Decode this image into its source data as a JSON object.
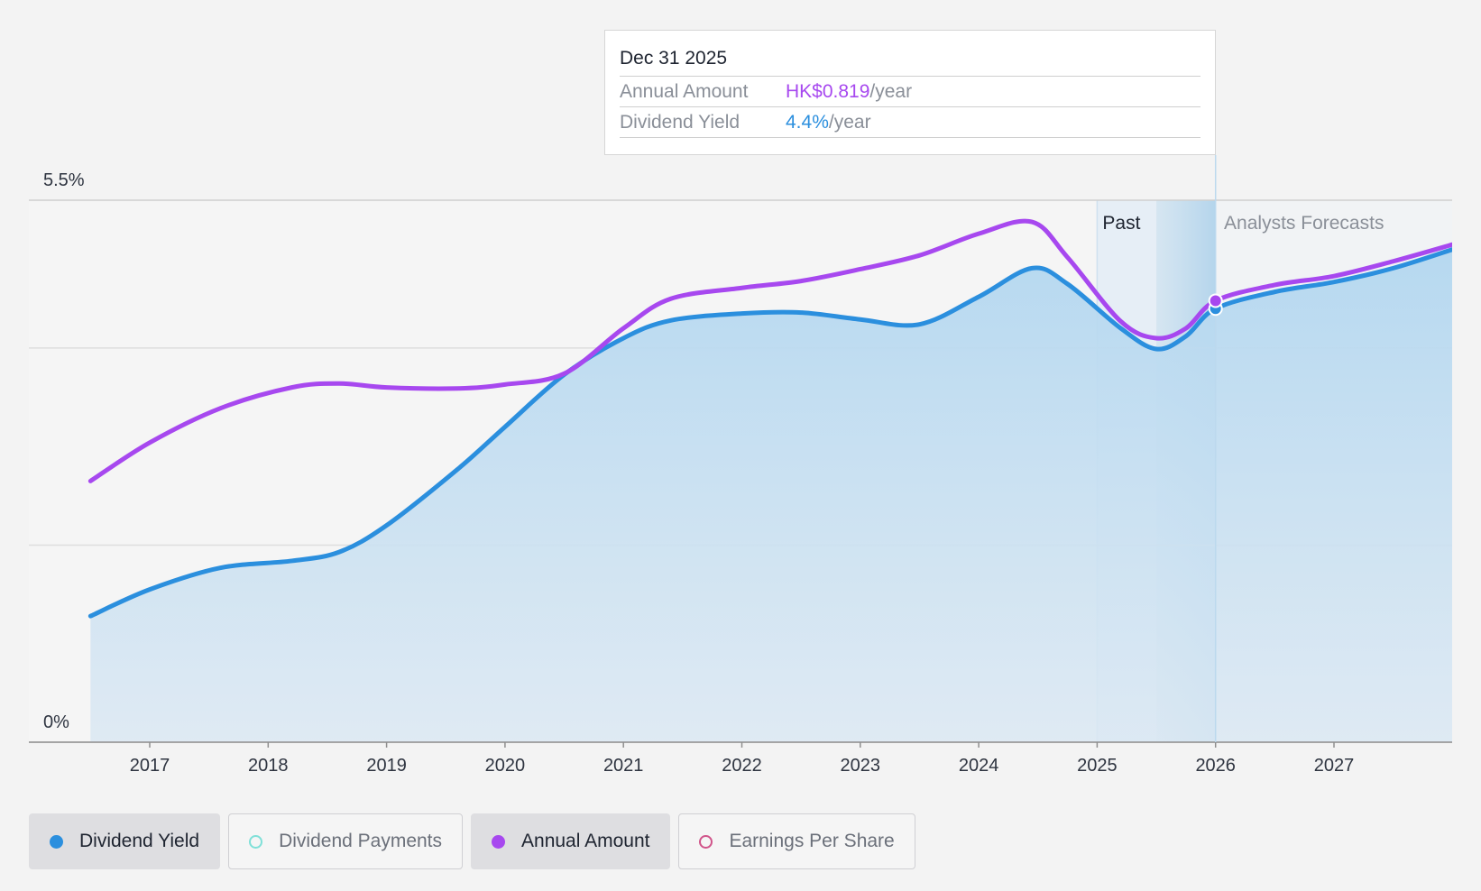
{
  "tooltip": {
    "date": "Dec 31 2025",
    "rows": [
      {
        "key": "Annual Amount",
        "value": "HK$0.819",
        "unit": "/year"
      },
      {
        "key": "Dividend Yield",
        "value": "4.4%",
        "unit": "/year"
      }
    ]
  },
  "periods": {
    "past": "Past",
    "forecast": "Analysts Forecasts"
  },
  "legend": [
    {
      "label": "Dividend Yield",
      "active": true,
      "color": "#2b8fde",
      "filled": true
    },
    {
      "label": "Dividend Payments",
      "active": false,
      "color": "#7fe0d8",
      "filled": false
    },
    {
      "label": "Annual Amount",
      "active": true,
      "color": "#a748ef",
      "filled": true
    },
    {
      "label": "Earnings Per Share",
      "active": false,
      "color": "#d0548a",
      "filled": false
    }
  ],
  "chart_data": {
    "type": "line",
    "ylim": [
      0,
      5.5
    ],
    "y_tick_labels": [
      "0%",
      "5.5%"
    ],
    "y_gridlines": [
      0,
      2,
      4,
      5.5
    ],
    "x_ticks": [
      "2017",
      "2018",
      "2019",
      "2020",
      "2021",
      "2022",
      "2023",
      "2024",
      "2025",
      "2026",
      "2027"
    ],
    "xlim": [
      2016.0,
      2028.0
    ],
    "series": [
      {
        "name": "Dividend Yield",
        "color": "#2b8fde",
        "area": true,
        "points": [
          [
            2016.5,
            1.28
          ],
          [
            2017.0,
            1.55
          ],
          [
            2017.6,
            1.77
          ],
          [
            2018.2,
            1.84
          ],
          [
            2018.6,
            1.93
          ],
          [
            2019.0,
            2.2
          ],
          [
            2019.6,
            2.77
          ],
          [
            2020.0,
            3.2
          ],
          [
            2020.5,
            3.73
          ],
          [
            2021.0,
            4.1
          ],
          [
            2021.4,
            4.28
          ],
          [
            2022.0,
            4.35
          ],
          [
            2022.5,
            4.36
          ],
          [
            2023.0,
            4.29
          ],
          [
            2023.5,
            4.24
          ],
          [
            2024.0,
            4.52
          ],
          [
            2024.45,
            4.81
          ],
          [
            2024.75,
            4.65
          ],
          [
            2025.2,
            4.2
          ],
          [
            2025.5,
            3.99
          ],
          [
            2025.75,
            4.12
          ],
          [
            2026.0,
            4.4
          ],
          [
            2026.5,
            4.57
          ],
          [
            2027.0,
            4.67
          ],
          [
            2027.5,
            4.81
          ],
          [
            2028.0,
            5.0
          ]
        ]
      },
      {
        "name": "Annual Amount",
        "color": "#a748ef",
        "area": false,
        "points": [
          [
            2016.5,
            2.65
          ],
          [
            2017.0,
            3.04
          ],
          [
            2017.6,
            3.39
          ],
          [
            2018.2,
            3.6
          ],
          [
            2018.6,
            3.64
          ],
          [
            2019.0,
            3.6
          ],
          [
            2019.6,
            3.59
          ],
          [
            2020.0,
            3.63
          ],
          [
            2020.5,
            3.74
          ],
          [
            2021.0,
            4.2
          ],
          [
            2021.4,
            4.5
          ],
          [
            2022.0,
            4.61
          ],
          [
            2022.5,
            4.68
          ],
          [
            2023.0,
            4.8
          ],
          [
            2023.5,
            4.94
          ],
          [
            2024.0,
            5.16
          ],
          [
            2024.45,
            5.28
          ],
          [
            2024.75,
            4.92
          ],
          [
            2025.2,
            4.27
          ],
          [
            2025.5,
            4.1
          ],
          [
            2025.75,
            4.2
          ],
          [
            2026.0,
            4.48
          ],
          [
            2026.5,
            4.64
          ],
          [
            2027.0,
            4.73
          ],
          [
            2027.5,
            4.88
          ],
          [
            2028.0,
            5.05
          ]
        ]
      }
    ],
    "past_band": [
      2025.0,
      2025.5
    ],
    "forecast_start": 2026.0,
    "tooltip_x": 2026.0
  }
}
